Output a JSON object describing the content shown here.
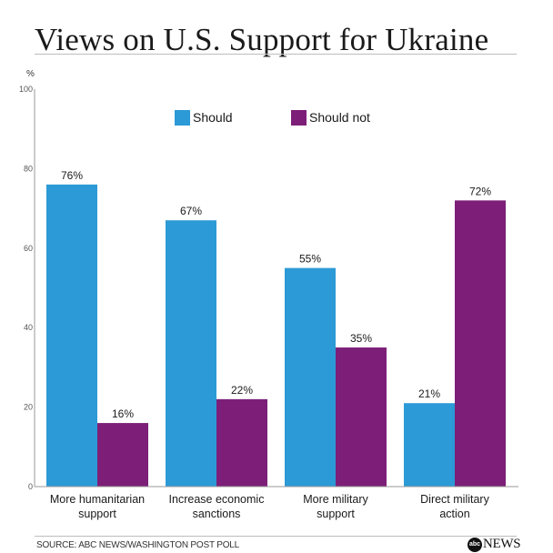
{
  "header": {
    "title": "Views on U.S. Support for Ukraine"
  },
  "footer": {
    "source": "SOURCE: ABC NEWS/WASHINGTON POST POLL",
    "brand_logo": "abc",
    "brand_text": "NEWS"
  },
  "colors": {
    "should": "#2c9ad6",
    "should_not": "#7d1f78"
  },
  "chart_data": {
    "type": "bar",
    "title": "Views on U.S. Support for Ukraine",
    "unit_label": "%",
    "ylim": [
      0,
      100
    ],
    "yticks": [
      0,
      20,
      40,
      60,
      80,
      100
    ],
    "legend_position": "top",
    "categories": [
      [
        "More humanitarian",
        "support"
      ],
      [
        "Increase economic",
        "sanctions"
      ],
      [
        "More military",
        "support"
      ],
      [
        "Direct military",
        "action"
      ]
    ],
    "series": [
      {
        "name": "Should",
        "values": [
          76,
          67,
          55,
          21
        ],
        "labels": [
          "76%",
          "67%",
          "55%",
          "21%"
        ],
        "color": "#2c9ad6"
      },
      {
        "name": "Should not",
        "values": [
          16,
          22,
          35,
          72
        ],
        "labels": [
          "16%",
          "22%",
          "35%",
          "72%"
        ],
        "color": "#7d1f78"
      }
    ]
  }
}
